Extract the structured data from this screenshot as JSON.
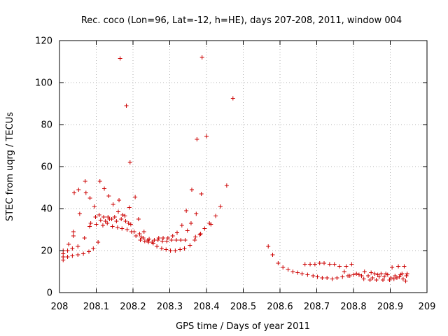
{
  "chart_data": {
    "type": "scatter",
    "title": "Rec. coco (Lon=96, Lat=-12, h=HE), days 207-208, 2011, window 004",
    "xlabel": "GPS time / Days of year 2011",
    "ylabel": "STEC from uqrg / TECUs",
    "xlim": [
      208,
      209
    ],
    "ylim": [
      0,
      120
    ],
    "x_ticks": [
      "208",
      "208.1",
      "208.2",
      "208.3",
      "208.4",
      "208.5",
      "208.6",
      "208.7",
      "208.8",
      "208.9",
      "209"
    ],
    "y_ticks": [
      "0",
      "20",
      "40",
      "60",
      "80",
      "100",
      "120"
    ],
    "grid": true,
    "marker": "plus",
    "series": [
      {
        "color": "#cc0000",
        "points": [
          [
            208.01,
            15.5
          ],
          [
            208.01,
            17.0
          ],
          [
            208.01,
            18.5
          ],
          [
            208.01,
            20.0
          ],
          [
            208.022,
            17.0
          ],
          [
            208.022,
            20.0
          ],
          [
            208.025,
            23.0
          ],
          [
            208.035,
            17.5
          ],
          [
            208.035,
            21.0
          ],
          [
            208.038,
            27.0
          ],
          [
            208.038,
            29.0
          ],
          [
            208.04,
            47.5
          ],
          [
            208.05,
            18.0
          ],
          [
            208.05,
            22.0
          ],
          [
            208.052,
            49.0
          ],
          [
            208.055,
            37.5
          ],
          [
            208.065,
            18.5
          ],
          [
            208.068,
            26.0
          ],
          [
            208.07,
            53.0
          ],
          [
            208.072,
            47.5
          ],
          [
            208.08,
            19.5
          ],
          [
            208.082,
            31.5
          ],
          [
            208.083,
            45.0
          ],
          [
            208.085,
            33.0
          ],
          [
            208.092,
            21.0
          ],
          [
            208.095,
            41.0
          ],
          [
            208.098,
            36.0
          ],
          [
            208.1,
            32.5
          ],
          [
            208.105,
            24.0
          ],
          [
            208.108,
            37.0
          ],
          [
            208.11,
            53.0
          ],
          [
            208.112,
            34.5
          ],
          [
            208.118,
            32.0
          ],
          [
            208.12,
            36.0
          ],
          [
            208.122,
            49.5
          ],
          [
            208.125,
            34.0
          ],
          [
            208.13,
            33.0
          ],
          [
            208.132,
            36.0
          ],
          [
            208.134,
            46.0
          ],
          [
            208.136,
            35.0
          ],
          [
            208.142,
            35.0
          ],
          [
            208.144,
            31.5
          ],
          [
            208.146,
            42.0
          ],
          [
            208.15,
            36.0
          ],
          [
            208.155,
            34.0
          ],
          [
            208.158,
            31.0
          ],
          [
            208.16,
            38.5
          ],
          [
            208.162,
            44.0
          ],
          [
            208.165,
            111.5
          ],
          [
            208.168,
            35.0
          ],
          [
            208.17,
            30.5
          ],
          [
            208.172,
            37.0
          ],
          [
            208.178,
            36.5
          ],
          [
            208.18,
            34.0
          ],
          [
            208.182,
            89.0
          ],
          [
            208.184,
            30.0
          ],
          [
            208.188,
            33.0
          ],
          [
            208.19,
            40.5
          ],
          [
            208.192,
            62.0
          ],
          [
            208.194,
            32.5
          ],
          [
            208.196,
            29.0
          ],
          [
            208.203,
            29.0
          ],
          [
            208.206,
            45.5
          ],
          [
            208.208,
            27.0
          ],
          [
            208.215,
            35.0
          ],
          [
            208.218,
            28.0
          ],
          [
            208.22,
            25.0
          ],
          [
            208.222,
            26.5
          ],
          [
            208.228,
            26.0
          ],
          [
            208.23,
            29.0
          ],
          [
            208.232,
            24.5
          ],
          [
            208.24,
            25.0
          ],
          [
            208.242,
            24.0
          ],
          [
            208.244,
            25.5
          ],
          [
            208.252,
            24.0
          ],
          [
            208.255,
            23.5
          ],
          [
            208.258,
            25.0
          ],
          [
            208.265,
            22.0
          ],
          [
            208.268,
            25.0
          ],
          [
            208.27,
            26.0
          ],
          [
            208.278,
            21.0
          ],
          [
            208.28,
            24.5
          ],
          [
            208.282,
            26.0
          ],
          [
            208.29,
            20.5
          ],
          [
            208.292,
            24.5
          ],
          [
            208.295,
            26.0
          ],
          [
            208.302,
            20.0
          ],
          [
            208.305,
            25.0
          ],
          [
            208.308,
            27.0
          ],
          [
            208.315,
            20.0
          ],
          [
            208.318,
            25.0
          ],
          [
            208.32,
            28.5
          ],
          [
            208.328,
            20.5
          ],
          [
            208.33,
            25.0
          ],
          [
            208.333,
            32.0
          ],
          [
            208.34,
            21.0
          ],
          [
            208.342,
            25.0
          ],
          [
            208.345,
            39.0
          ],
          [
            208.348,
            29.5
          ],
          [
            208.355,
            22.5
          ],
          [
            208.358,
            33.0
          ],
          [
            208.36,
            49.0
          ],
          [
            208.368,
            25.0
          ],
          [
            208.37,
            26.5
          ],
          [
            208.372,
            37.5
          ],
          [
            208.374,
            73.0
          ],
          [
            208.382,
            27.5
          ],
          [
            208.384,
            28.0
          ],
          [
            208.386,
            47.0
          ],
          [
            208.388,
            112.0
          ],
          [
            208.395,
            30.5
          ],
          [
            208.4,
            74.5
          ],
          [
            208.408,
            33.0
          ],
          [
            208.412,
            32.5
          ],
          [
            208.425,
            36.5
          ],
          [
            208.438,
            41.0
          ],
          [
            208.455,
            51.0
          ],
          [
            208.472,
            92.5
          ],
          [
            208.568,
            22.0
          ],
          [
            208.58,
            18.0
          ],
          [
            208.595,
            14.0
          ],
          [
            208.608,
            12.0
          ],
          [
            208.622,
            11.0
          ],
          [
            208.635,
            10.0
          ],
          [
            208.648,
            9.5
          ],
          [
            208.66,
            9.0
          ],
          [
            208.668,
            13.5
          ],
          [
            208.675,
            8.5
          ],
          [
            208.682,
            13.5
          ],
          [
            208.69,
            8.0
          ],
          [
            208.695,
            13.5
          ],
          [
            208.702,
            7.5
          ],
          [
            208.708,
            14.0
          ],
          [
            208.715,
            7.0
          ],
          [
            208.72,
            14.0
          ],
          [
            208.728,
            7.0
          ],
          [
            208.735,
            13.5
          ],
          [
            208.742,
            6.5
          ],
          [
            208.748,
            13.5
          ],
          [
            208.755,
            7.0
          ],
          [
            208.762,
            12.5
          ],
          [
            208.77,
            7.5
          ],
          [
            208.775,
            10.0
          ],
          [
            208.78,
            12.5
          ],
          [
            208.785,
            8.0
          ],
          [
            208.79,
            8.0
          ],
          [
            208.795,
            13.5
          ],
          [
            208.8,
            8.5
          ],
          [
            208.808,
            9.0
          ],
          [
            208.815,
            8.5
          ],
          [
            208.822,
            8.0
          ],
          [
            208.828,
            6.5
          ],
          [
            208.83,
            10.0
          ],
          [
            208.84,
            8.0
          ],
          [
            208.845,
            6.0
          ],
          [
            208.848,
            9.5
          ],
          [
            208.852,
            7.0
          ],
          [
            208.858,
            9.0
          ],
          [
            208.862,
            6.0
          ],
          [
            208.866,
            8.5
          ],
          [
            208.87,
            7.5
          ],
          [
            208.875,
            9.0
          ],
          [
            208.88,
            6.0
          ],
          [
            208.884,
            7.5
          ],
          [
            208.888,
            9.0
          ],
          [
            208.893,
            8.5
          ],
          [
            208.898,
            6.0
          ],
          [
            208.902,
            7.0
          ],
          [
            208.905,
            12.0
          ],
          [
            208.91,
            6.5
          ],
          [
            208.913,
            8.0
          ],
          [
            208.918,
            7.0
          ],
          [
            208.922,
            12.5
          ],
          [
            208.925,
            7.5
          ],
          [
            208.928,
            8.5
          ],
          [
            208.932,
            9.0
          ],
          [
            208.935,
            6.5
          ],
          [
            208.938,
            12.5
          ],
          [
            208.942,
            5.5
          ],
          [
            208.944,
            8.0
          ],
          [
            208.946,
            9.0
          ]
        ]
      }
    ]
  }
}
